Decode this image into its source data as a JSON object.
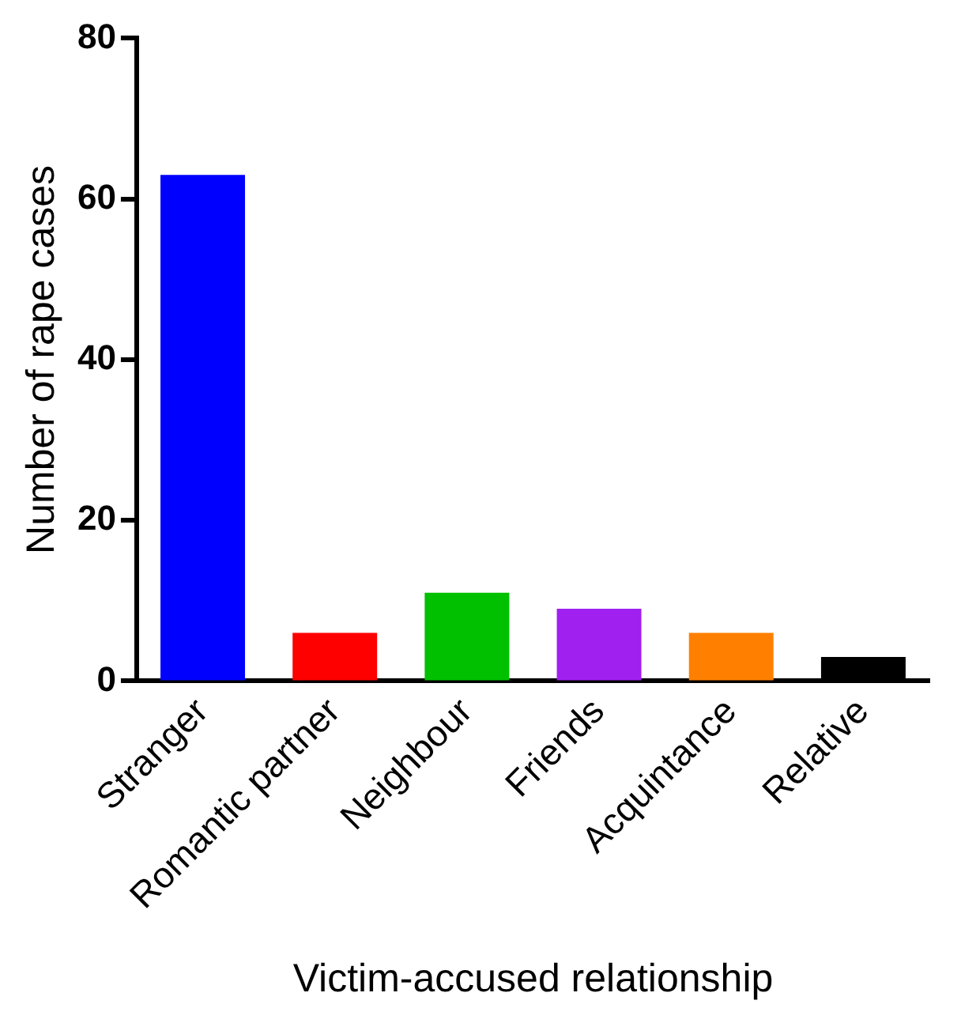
{
  "chart_data": {
    "type": "bar",
    "xlabel": "Victim-accused relationship",
    "ylabel": "Number of rape cases",
    "categories": [
      "Stranger",
      "Romantic partner",
      "Neighbour",
      "Friends",
      "Acquintance",
      "Relative"
    ],
    "values": [
      63,
      6,
      11,
      9,
      6,
      3
    ],
    "colors": [
      "#0000ff",
      "#ff0000",
      "#00c000",
      "#a020f0",
      "#ff8000",
      "#000000"
    ],
    "ylim": [
      0,
      80
    ],
    "yticks": [
      0,
      20,
      40,
      60,
      80
    ],
    "grid": false,
    "legend": false
  }
}
